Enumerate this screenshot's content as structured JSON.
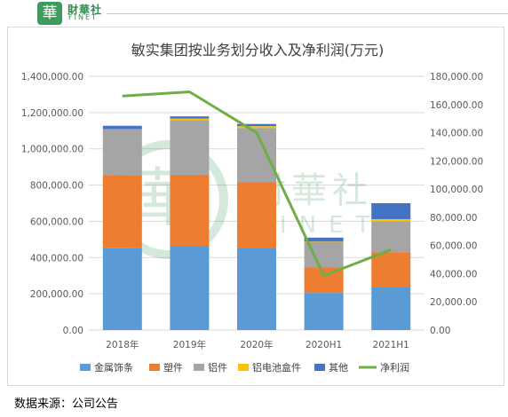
{
  "header": {
    "logo_char": "華",
    "brand_cn": "財華社",
    "brand_en": "FINET"
  },
  "watermark": {
    "logo_char": "華",
    "text_cn": "財華社",
    "text_en": "FINET"
  },
  "source": "数据来源：公司公告",
  "chart_data": {
    "type": "bar",
    "stacked": true,
    "title": "敏实集团按业务划分收入及净利润(万元)",
    "categories": [
      "2018年",
      "2019年",
      "2020年",
      "2020H1",
      "2021H1"
    ],
    "series": [
      {
        "name": "金属饰条",
        "axis": "left",
        "color": "#5b9bd5",
        "values": [
          452000,
          465000,
          455000,
          205000,
          235000
        ]
      },
      {
        "name": "塑件",
        "axis": "left",
        "color": "#ed7d31",
        "values": [
          402000,
          392000,
          362000,
          140000,
          195000
        ]
      },
      {
        "name": "铝件",
        "axis": "left",
        "color": "#a5a5a5",
        "values": [
          255000,
          302000,
          298000,
          140000,
          170000
        ]
      },
      {
        "name": "铝电池盒件",
        "axis": "left",
        "color": "#ffc000",
        "values": [
          0,
          8000,
          10000,
          3000,
          12000
        ]
      },
      {
        "name": "其他",
        "axis": "left",
        "color": "#4472c4",
        "values": [
          18000,
          12000,
          12000,
          22000,
          88000
        ]
      },
      {
        "name": "净利润",
        "axis": "right",
        "type": "line",
        "color": "#70ad47",
        "values": [
          166000,
          169000,
          140000,
          38500,
          57000
        ]
      }
    ],
    "left_axis": {
      "ylim": [
        0,
        1400000
      ],
      "ticks": [
        "0.00",
        "200,000.00",
        "400,000.00",
        "600,000.00",
        "800,000.00",
        "1,000,000.00",
        "1,200,000.00",
        "1,400,000.00"
      ]
    },
    "right_axis": {
      "ylim": [
        0,
        180000
      ],
      "ticks": [
        "0.00",
        "20,000.00",
        "40,000.00",
        "60,000.00",
        "80,000.00",
        "100,000.00",
        "120,000.00",
        "140,000.00",
        "160,000.00",
        "180,000.00"
      ]
    },
    "grid": true,
    "legend": "bottom"
  }
}
